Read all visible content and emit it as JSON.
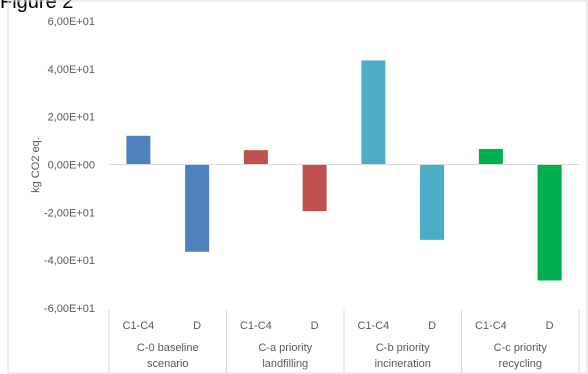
{
  "figure_label": "Figure 2",
  "colors": {
    "frame": "#d9d9d9",
    "text": "#595959",
    "baseline": "#4f81bd",
    "landfilling": "#c0504d",
    "incineration": "#4bacc6",
    "recycling": "#00b050"
  },
  "chart_data": {
    "type": "bar",
    "title": "",
    "ylabel": "kg CO2 eq.",
    "xlabel": "",
    "ylim": [
      -60,
      60
    ],
    "yticks": [
      60,
      40,
      20,
      0,
      -20,
      -40,
      -60
    ],
    "ytick_labels": [
      "6,00E+01",
      "4,00E+01",
      "2,00E+01",
      "0,00E+00",
      "-2,00E+01",
      "-4,00E+01",
      "-6,00E+01"
    ],
    "grid": false,
    "legend": "none",
    "groups": [
      {
        "name_lines": [
          "C-0 baseline",
          "scenario"
        ],
        "color_key": "baseline",
        "bars": [
          {
            "label": "C1-C4",
            "value": 12.0
          },
          {
            "label": "D",
            "value": -36.5
          }
        ]
      },
      {
        "name_lines": [
          "C-a priority",
          "landfilling"
        ],
        "color_key": "landfilling",
        "bars": [
          {
            "label": "C1-C4",
            "value": 6.0
          },
          {
            "label": "D",
            "value": -19.5
          }
        ]
      },
      {
        "name_lines": [
          "C-b priority",
          "incineration"
        ],
        "color_key": "incineration",
        "bars": [
          {
            "label": "C1-C4",
            "value": 43.5
          },
          {
            "label": "D",
            "value": -31.5
          }
        ]
      },
      {
        "name_lines": [
          "C-c priority",
          "recycling"
        ],
        "color_key": "recycling",
        "bars": [
          {
            "label": "C1-C4",
            "value": 6.5
          },
          {
            "label": "D",
            "value": -48.5
          }
        ]
      }
    ]
  }
}
